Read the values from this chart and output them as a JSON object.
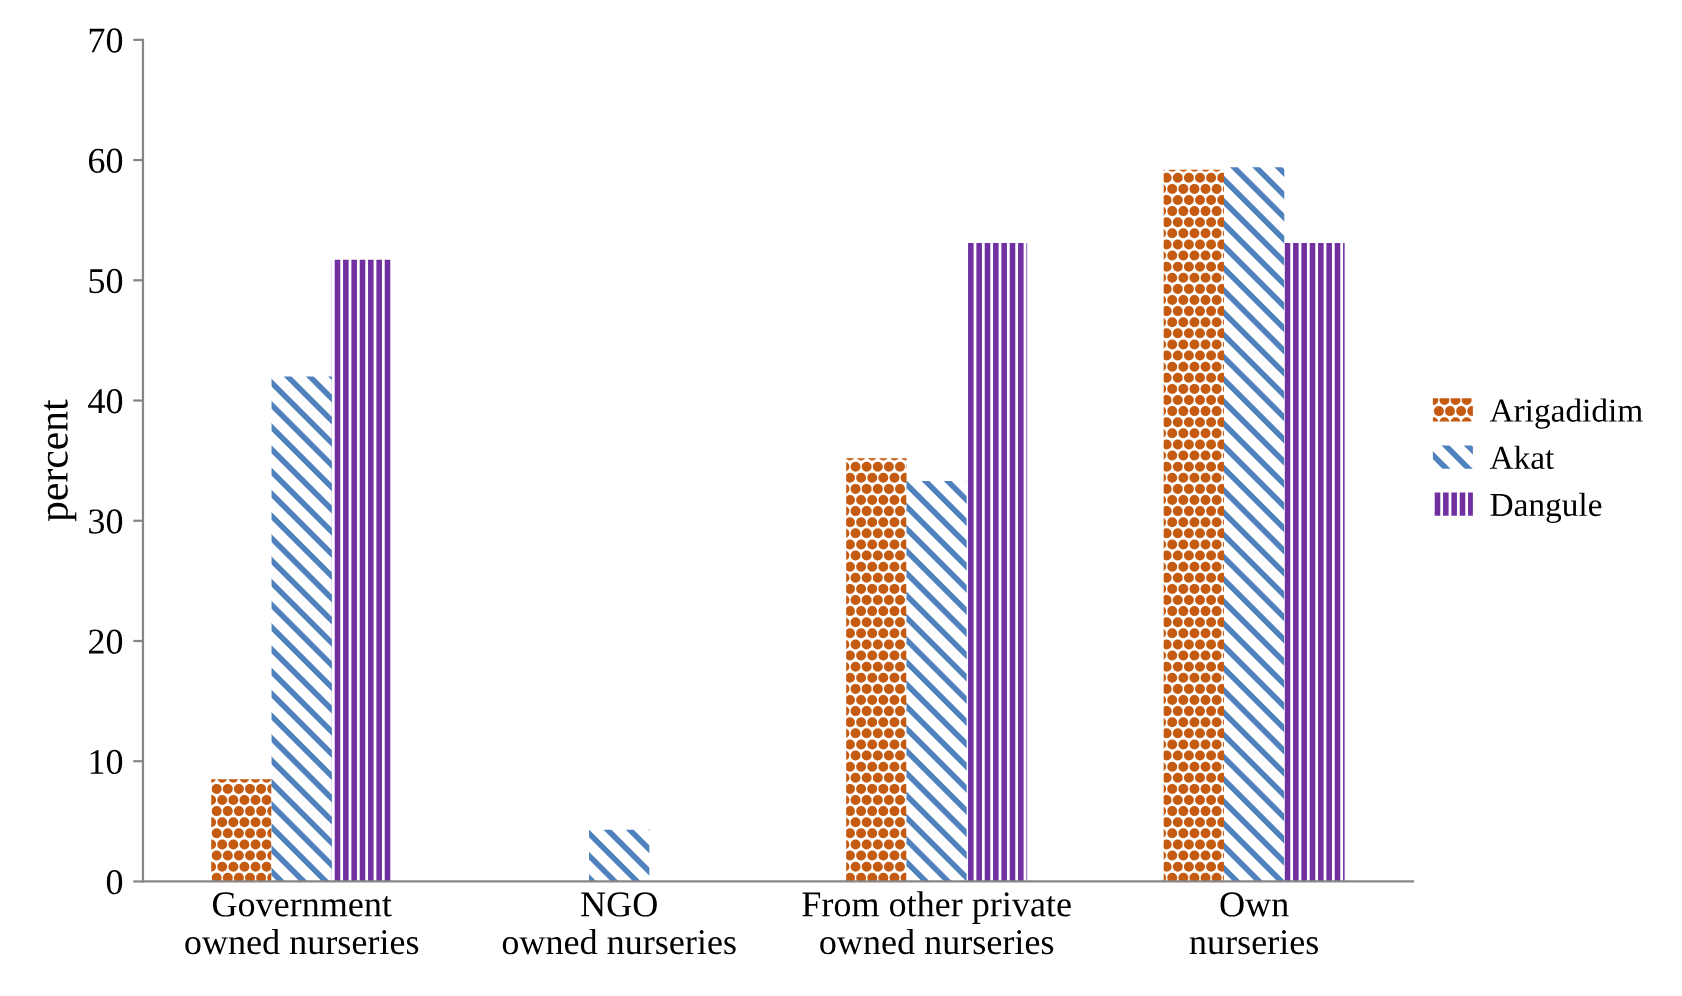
{
  "chart_data": {
    "type": "bar",
    "ylabel": "percent",
    "categories": [
      "Government owned nurseries",
      "NGO owned nurseries",
      "From other private owned nurseries",
      "Own nurseries"
    ],
    "series": [
      {
        "name": "Arigadidim",
        "color": "#c55a11",
        "values": [
          8.5,
          0,
          35.2,
          59.2
        ]
      },
      {
        "name": "Akat",
        "color": "#4f81bd",
        "values": [
          42,
          4.3,
          33.3,
          59.4
        ]
      },
      {
        "name": "Dangule",
        "color": "#7030a0",
        "values": [
          51.7,
          0,
          53.1,
          53.1
        ]
      }
    ],
    "ylim": [
      0,
      70
    ],
    "yticks": [
      0,
      10,
      20,
      30,
      40,
      50,
      60,
      70
    ],
    "grid": false,
    "legend": "right"
  }
}
